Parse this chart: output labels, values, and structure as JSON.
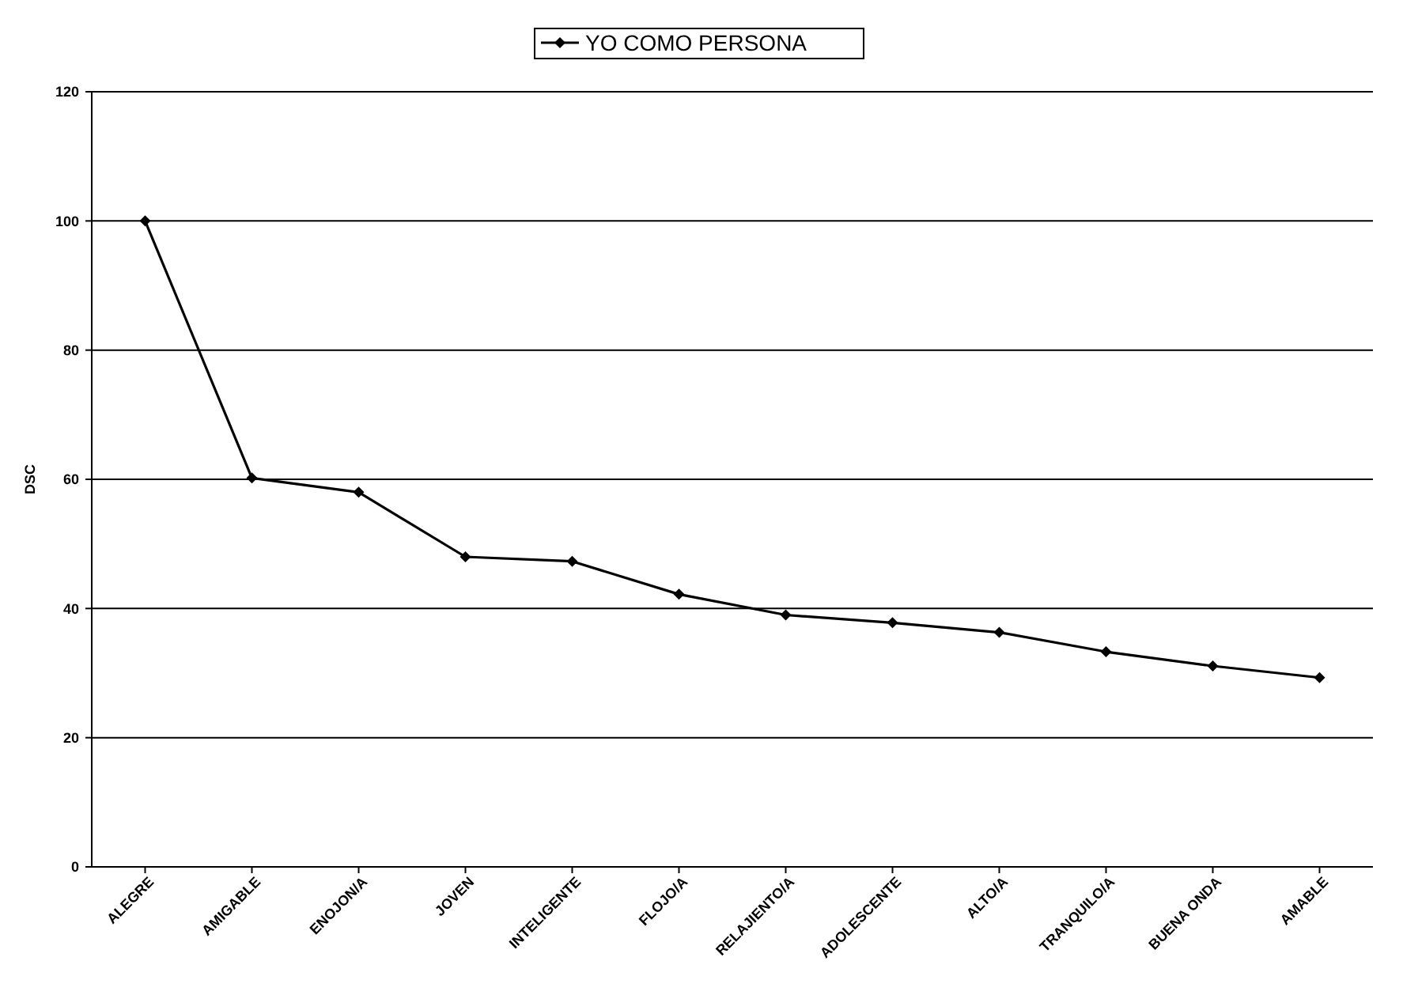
{
  "chart_data": {
    "type": "line",
    "ylabel": "DSC",
    "categories": [
      "ALEGRE",
      "AMIGABLE",
      "ENOJON/A",
      "JOVEN",
      "INTELIGENTE",
      "FLOJO/A",
      "RELAJIENTO/A",
      "ADOLESCENTE",
      "ALTO/A",
      "TRANQUILO/A",
      "BUENA ONDA",
      "AMABLE"
    ],
    "series": [
      {
        "name": "YO COMO PERSONA",
        "color": "#000000",
        "values": [
          100,
          60.2,
          58,
          48,
          47.3,
          42.2,
          39,
          37.8,
          36.3,
          33.3,
          31.1,
          29.3
        ]
      }
    ],
    "ylim": [
      0,
      120
    ],
    "yticks": [
      0,
      20,
      40,
      60,
      80,
      100,
      120
    ],
    "grid": "y",
    "legend": "top",
    "marker": "diamond",
    "line_style": "solid"
  }
}
